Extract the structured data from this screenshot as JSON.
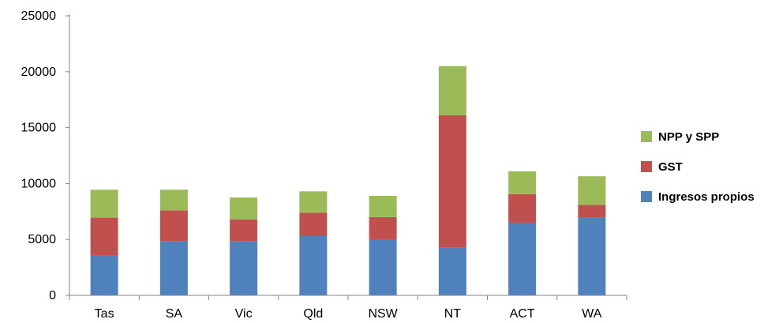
{
  "chart_data": {
    "type": "bar",
    "stacked": true,
    "categories": [
      "Tas",
      "SA",
      "Vic",
      "Qld",
      "NSW",
      "NT",
      "ACT",
      "WA"
    ],
    "series": [
      {
        "name": "Ingresos propios",
        "color": "#4F81BD",
        "values": [
          3600,
          4850,
          4850,
          5300,
          4950,
          4300,
          6500,
          6950
        ]
      },
      {
        "name": "GST",
        "color": "#C0504D",
        "values": [
          3350,
          2750,
          1950,
          2100,
          2050,
          11800,
          2550,
          1150
        ]
      },
      {
        "name": "NPP y SPP",
        "color": "#9BBB59",
        "values": [
          2500,
          1850,
          1950,
          1900,
          1900,
          4400,
          2050,
          2550
        ]
      }
    ],
    "ylim": [
      0,
      25000
    ],
    "yticks": [
      0,
      5000,
      10000,
      15000,
      20000,
      25000
    ],
    "grid": false,
    "legend_position": "right",
    "legend_order": [
      "NPP y SPP",
      "GST",
      "Ingresos propios"
    ],
    "title": "",
    "xlabel": "",
    "ylabel": ""
  }
}
